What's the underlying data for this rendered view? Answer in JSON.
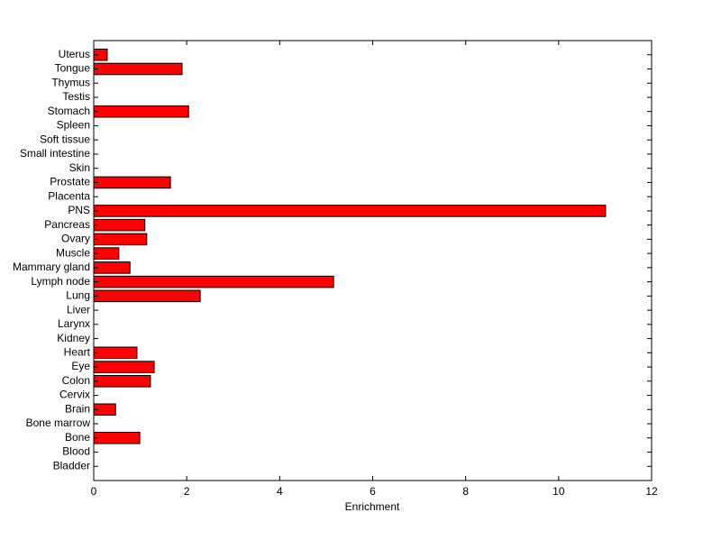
{
  "chart_data": {
    "type": "barh",
    "xlabel": "Enrichment",
    "color": "#ff0000",
    "categories": [
      "Bladder",
      "Blood",
      "Bone",
      "Bone marrow",
      "Brain",
      "Cervix",
      "Colon",
      "Eye",
      "Heart",
      "Kidney",
      "Larynx",
      "Liver",
      "Lung",
      "Lymph node",
      "Mammary gland",
      "Muscle",
      "Ovary",
      "Pancreas",
      "PNS",
      "Placenta",
      "Prostate",
      "Skin",
      "Small intestine",
      "Soft tissue",
      "Spleen",
      "Stomach",
      "Testis",
      "Thymus",
      "Tongue",
      "Uterus"
    ],
    "values": [
      0,
      0,
      0.99,
      0,
      0.47,
      0,
      1.22,
      1.3,
      0.93,
      0,
      0,
      0,
      2.29,
      5.16,
      0.78,
      0.54,
      1.14,
      1.1,
      11.01,
      0,
      1.65,
      0,
      0,
      0,
      0,
      2.04,
      0,
      0,
      1.9,
      0.29
    ],
    "xlim": [
      0,
      12
    ],
    "xticks": [
      0,
      2,
      4,
      6,
      8,
      10,
      12
    ]
  }
}
